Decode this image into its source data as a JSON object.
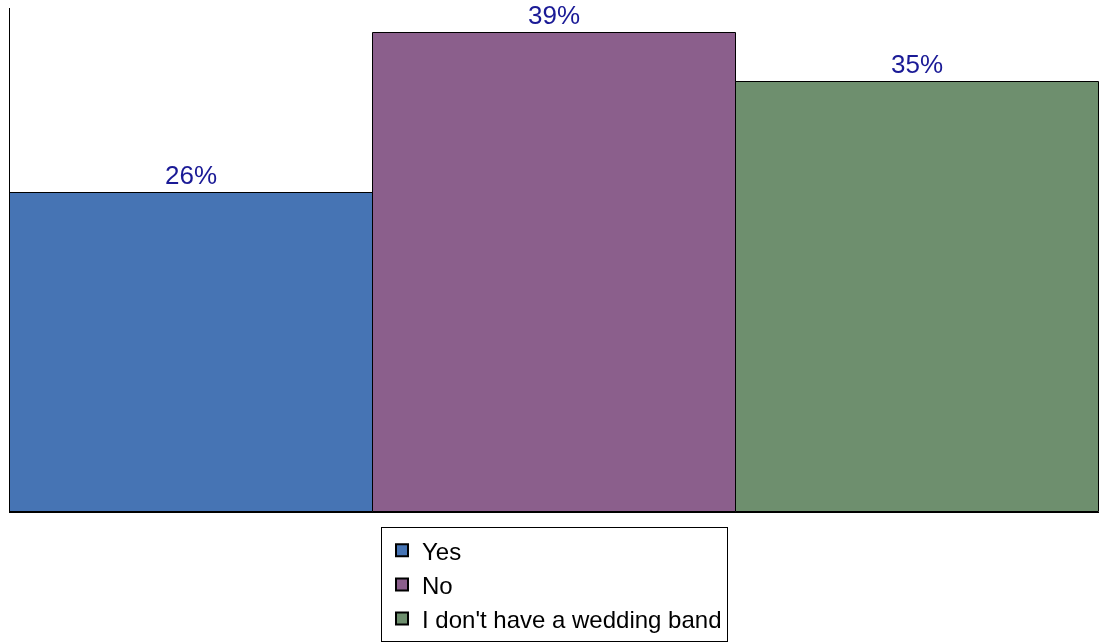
{
  "chart_data": {
    "type": "bar",
    "categories": [
      null
    ],
    "series": [
      {
        "name": "Yes",
        "color": "#4674b4",
        "values": [
          26
        ],
        "value_labels": [
          "26%"
        ]
      },
      {
        "name": "No",
        "color": "#8b5f8c",
        "values": [
          39
        ],
        "value_labels": [
          "39%"
        ]
      },
      {
        "name": "I don't have a wedding band",
        "color": "#6e8f6e",
        "values": [
          35
        ],
        "value_labels": [
          "35%"
        ]
      }
    ],
    "legend": "bottom",
    "grid": false
  }
}
